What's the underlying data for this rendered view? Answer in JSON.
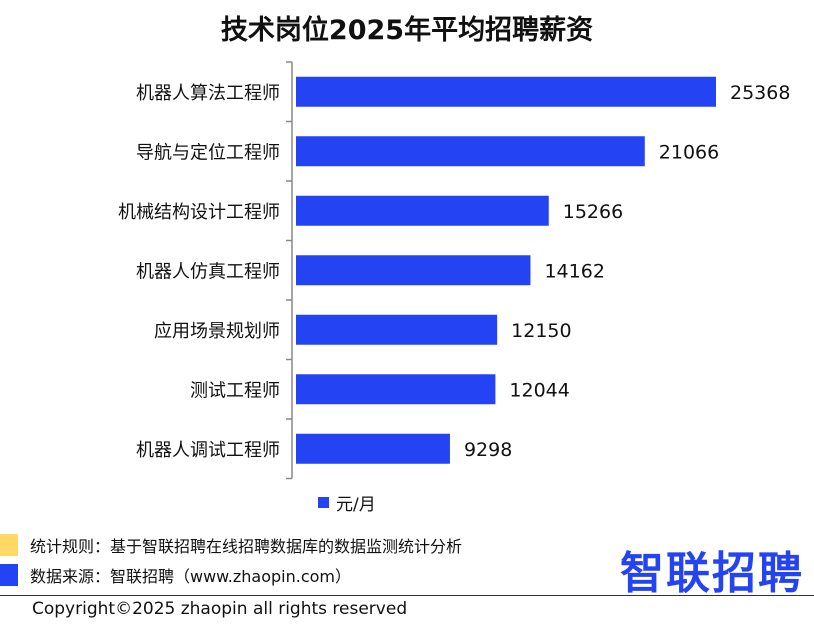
{
  "title": "技术岗位2025年平均招聘薪资",
  "legend_label": "元/月",
  "notes": {
    "rule_text": "统计规则：基于智联招聘在线招聘数据库的数据监测统计分析",
    "source_text": "数据来源：智联招聘（www.zhaopin.com）"
  },
  "brand": "智联招聘",
  "copyright": "Copyright©2025 zhaopin all rights reserved",
  "colors": {
    "bar": "#2443f2",
    "note_yellow": "#ffd966",
    "note_blue": "#2443f2"
  },
  "chart_data": {
    "type": "bar",
    "orientation": "horizontal",
    "categories": [
      "机器人算法工程师",
      "导航与定位工程师",
      "机械结构设计工程师",
      "机器人仿真工程师",
      "应用场景规划师",
      "测试工程师",
      "机器人调试工程师"
    ],
    "series": [
      {
        "name": "元/月",
        "values": [
          25368,
          21066,
          15266,
          14162,
          12150,
          12044,
          9298
        ]
      }
    ],
    "xlim": [
      0,
      26000
    ],
    "data_labels": true,
    "grid": false,
    "legend_position": "bottom"
  }
}
